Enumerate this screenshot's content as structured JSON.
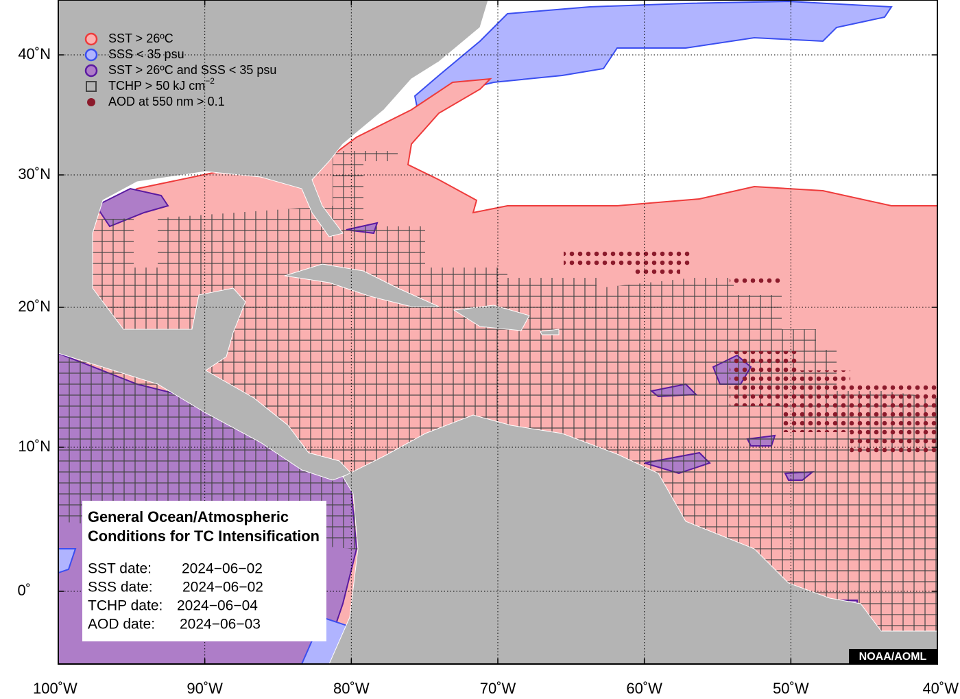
{
  "chart_data": {
    "type": "map",
    "xlim": [
      -100,
      -40
    ],
    "xticks": [
      {
        "value": -100,
        "label": "100˚W"
      },
      {
        "value": -90,
        "label": "90˚W"
      },
      {
        "value": -80,
        "label": "80˚W"
      },
      {
        "value": -70,
        "label": "70˚W"
      },
      {
        "value": -60,
        "label": "60˚W"
      },
      {
        "value": -50,
        "label": "50˚W"
      },
      {
        "value": -40,
        "label": "40˚W"
      }
    ],
    "yticks": [
      {
        "value": 0,
        "label": "0˚"
      },
      {
        "value": 10,
        "label": "10˚N"
      },
      {
        "value": 20,
        "label": "20˚N"
      },
      {
        "value": 30,
        "label": "30˚N"
      },
      {
        "value": 40,
        "label": "40˚N"
      }
    ],
    "grid": true,
    "legend": [
      {
        "label": "SST > 26ºC",
        "color": "#f08080"
      },
      {
        "label": "SSS < 35 psu",
        "color": "#4a5cf0"
      },
      {
        "label": "SST > 26ºC and SSS < 35 psu",
        "color": "#7b2fb0"
      },
      {
        "label": "TCHP > 50 kJ cm",
        "sup": "−2",
        "color": "#444444"
      },
      {
        "label": "AOD at 550 nm > 0.1",
        "color": "#8b1a2b"
      }
    ],
    "info_box": {
      "title": [
        "General Ocean/Atmospheric",
        "Conditions for TC Intensification"
      ],
      "rows": [
        {
          "label": "SST date:",
          "value": "2024−06−02"
        },
        {
          "label": "SSS date:",
          "value": "2024−06−02"
        },
        {
          "label": "TCHP date:",
          "value": "2024−06−04"
        },
        {
          "label": "AOD date:",
          "value": "2024−06−03"
        }
      ]
    },
    "credit": "NOAA/AOML"
  }
}
